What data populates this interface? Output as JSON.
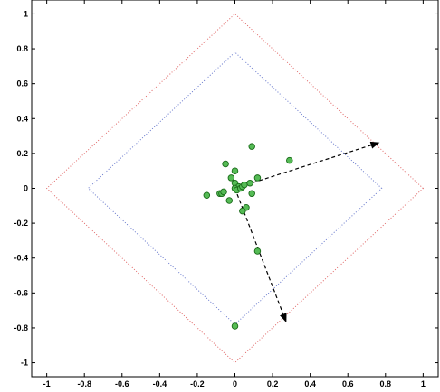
{
  "chart_data": {
    "type": "scatter",
    "title": "",
    "xlabel": "",
    "ylabel": "",
    "xlim": [
      -1.08,
      1.08
    ],
    "ylim": [
      -1.08,
      1.08
    ],
    "grid": false,
    "x_ticks": [
      "-1",
      "-0.8",
      "-0.6",
      "-0.4",
      "-0.2",
      "0",
      "0.2",
      "0.4",
      "0.6",
      "0.8",
      "1"
    ],
    "x_tick_values": [
      -1,
      -0.8,
      -0.6,
      -0.4,
      -0.2,
      0,
      0.2,
      0.4,
      0.6,
      0.8,
      1
    ],
    "y_ticks": [
      "1",
      "0.8",
      "0.6",
      "0.4",
      "0.2",
      "0",
      "-0.2",
      "-0.4",
      "-0.6",
      "-0.8",
      "-1"
    ],
    "y_tick_values": [
      1,
      0.8,
      0.6,
      0.4,
      0.2,
      0,
      -0.2,
      -0.4,
      -0.6,
      -0.8,
      -1
    ],
    "outer_diamond": {
      "radius": 1.0,
      "color": "#e06666",
      "style": "dotted"
    },
    "inner_diamond": {
      "radius": 0.78,
      "color": "#6677cc",
      "style": "dotted"
    },
    "points": {
      "color": "#55bb55",
      "edge": "#1a6b1a",
      "x": [
        0.09,
        0.29,
        -0.05,
        0.0,
        -0.02,
        -0.15,
        -0.08,
        -0.07,
        -0.06,
        0.0,
        0.02,
        0.0,
        0.01,
        0.03,
        0.04,
        0.05,
        0.08,
        0.12,
        0.09,
        0.06,
        0.04,
        -0.03,
        0.12,
        0.0
      ],
      "y": [
        0.24,
        0.16,
        0.14,
        0.1,
        0.06,
        -0.04,
        -0.03,
        -0.03,
        -0.02,
        0.03,
        0.01,
        0.0,
        -0.01,
        0.0,
        0.01,
        0.02,
        0.03,
        0.06,
        -0.03,
        -0.11,
        -0.13,
        -0.07,
        -0.36,
        -0.79
      ]
    },
    "arrows": [
      {
        "from": [
          0.0,
          0.0
        ],
        "to": [
          0.76,
          0.26
        ],
        "style": "dashed",
        "color": "#000000"
      },
      {
        "from": [
          0.0,
          0.0
        ],
        "to": [
          0.27,
          -0.76
        ],
        "style": "dashed",
        "color": "#000000"
      }
    ]
  }
}
